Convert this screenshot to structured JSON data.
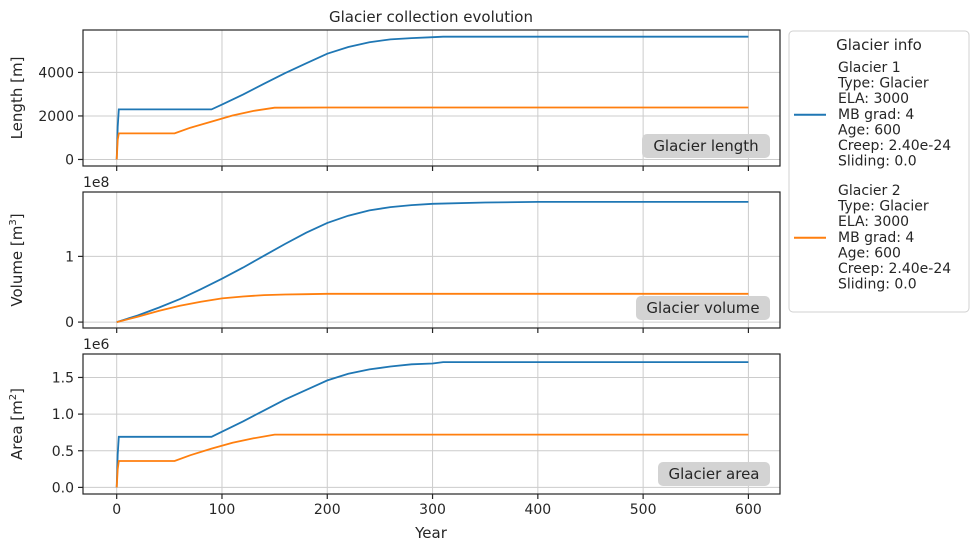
{
  "chart_data": {
    "type": "line",
    "title": "Glacier collection evolution",
    "xlabel": "Year",
    "xlim": [
      -32,
      630
    ],
    "xticks": [
      0,
      100,
      200,
      300,
      400,
      500,
      600
    ],
    "grid": true,
    "legend": {
      "title": "Glacier info",
      "placement": "outside-right",
      "entries": [
        {
          "color": "#1f77b4",
          "lines": [
            "Glacier 1",
            "Type: Glacier",
            "ELA: 3000",
            "MB grad: 4",
            "Age: 600",
            "Creep: 2.40e-24",
            "Sliding: 0.0"
          ]
        },
        {
          "color": "#ff7f0e",
          "lines": [
            "Glacier 2",
            "Type: Glacier",
            "ELA: 3000",
            "MB grad: 4",
            "Age: 600",
            "Creep: 2.40e-24",
            "Sliding: 0.0"
          ]
        }
      ]
    },
    "panels": [
      {
        "id": "length",
        "ylabel": "Length [m]",
        "ylabel_sup": "",
        "offset_text": "",
        "annotation": "Glacier length",
        "ylim": [
          -300,
          5950
        ],
        "yticks": [
          0,
          2000,
          4000
        ],
        "ytick_labels": [
          "0",
          "2000",
          "4000"
        ],
        "series": [
          {
            "name": "Glacier 1",
            "color": "#1f77b4",
            "x": [
              0,
              1,
              2,
              90,
              100,
              120,
              140,
              160,
              180,
              200,
              220,
              240,
              260,
              280,
              300,
              310,
              400,
              500,
              600
            ],
            "y": [
              0,
              1500,
              2300,
              2300,
              2520,
              2980,
              3480,
              3970,
              4420,
              4860,
              5170,
              5390,
              5520,
              5580,
              5620,
              5640,
              5640,
              5640,
              5640
            ]
          },
          {
            "name": "Glacier 2",
            "color": "#ff7f0e",
            "x": [
              0,
              1,
              2,
              55,
              70,
              90,
              110,
              130,
              150,
              200,
              300,
              400,
              500,
              600
            ],
            "y": [
              0,
              900,
              1200,
              1200,
              1460,
              1740,
              2020,
              2230,
              2380,
              2390,
              2390,
              2390,
              2390,
              2390
            ]
          }
        ]
      },
      {
        "id": "volume",
        "ylabel": "Volume [m",
        "ylabel_sup": "3",
        "ylabel_end": "]",
        "offset_text": "1e8",
        "annotation": "Glacier volume",
        "ylim": [
          -0.09,
          1.98
        ],
        "yticks": [
          0,
          1
        ],
        "ytick_labels": [
          "0",
          "1"
        ],
        "series": [
          {
            "name": "Glacier 1",
            "color": "#1f77b4",
            "x": [
              0,
              20,
              40,
              60,
              80,
              100,
              120,
              140,
              160,
              180,
              200,
              220,
              240,
              260,
              280,
              300,
              350,
              400,
              500,
              600
            ],
            "y": [
              0,
              0.1,
              0.22,
              0.35,
              0.5,
              0.66,
              0.83,
              1.01,
              1.19,
              1.36,
              1.51,
              1.62,
              1.7,
              1.75,
              1.78,
              1.8,
              1.82,
              1.83,
              1.83,
              1.83
            ]
          },
          {
            "name": "Glacier 2",
            "color": "#ff7f0e",
            "x": [
              0,
              20,
              40,
              60,
              80,
              100,
              120,
              140,
              160,
              180,
              200,
              300,
              400,
              500,
              600
            ],
            "y": [
              0,
              0.08,
              0.17,
              0.25,
              0.31,
              0.36,
              0.39,
              0.41,
              0.42,
              0.425,
              0.43,
              0.43,
              0.43,
              0.43,
              0.43
            ]
          }
        ]
      },
      {
        "id": "area",
        "ylabel": "Area [m",
        "ylabel_sup": "2",
        "ylabel_end": "]",
        "offset_text": "1e6",
        "annotation": "Glacier area",
        "ylim": [
          -0.09,
          1.82
        ],
        "yticks": [
          0,
          0.5,
          1.0,
          1.5
        ],
        "ytick_labels": [
          "0.0",
          "0.5",
          "1.0",
          "1.5"
        ],
        "series": [
          {
            "name": "Glacier 1",
            "color": "#1f77b4",
            "x": [
              0,
              1,
              2,
              90,
              100,
              120,
              140,
              160,
              180,
              200,
              220,
              240,
              260,
              280,
              300,
              310,
              400,
              500,
              600
            ],
            "y": [
              0,
              0.45,
              0.69,
              0.69,
              0.76,
              0.9,
              1.05,
              1.2,
              1.33,
              1.46,
              1.55,
              1.61,
              1.65,
              1.68,
              1.69,
              1.71,
              1.71,
              1.71,
              1.71
            ]
          },
          {
            "name": "Glacier 2",
            "color": "#ff7f0e",
            "x": [
              0,
              1,
              2,
              55,
              70,
              90,
              110,
              130,
              150,
              200,
              300,
              400,
              500,
              600
            ],
            "y": [
              0,
              0.25,
              0.36,
              0.36,
              0.44,
              0.53,
              0.61,
              0.67,
              0.72,
              0.72,
              0.72,
              0.72,
              0.72,
              0.72
            ]
          }
        ]
      }
    ]
  }
}
